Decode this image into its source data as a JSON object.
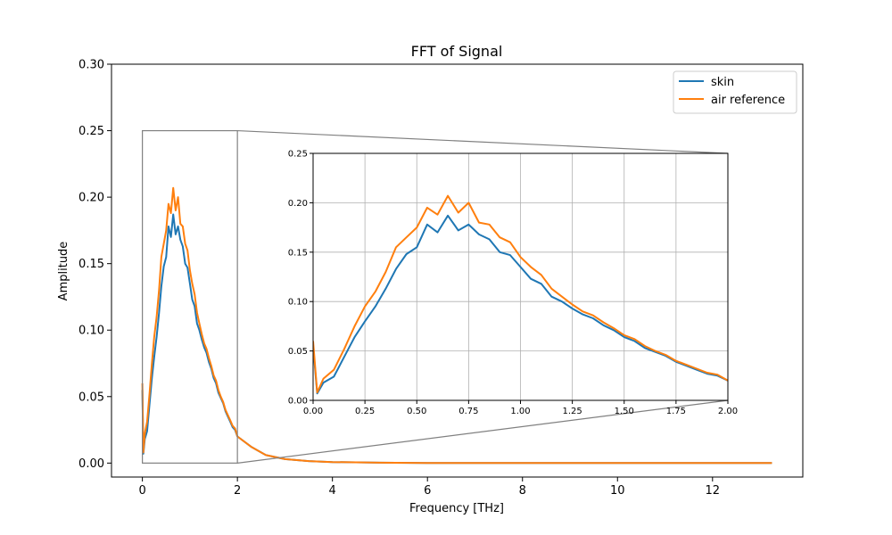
{
  "chart_data": {
    "type": "line",
    "title": "FFT of Signal",
    "xlabel": "Frequency [THz]",
    "ylabel": "Amplitude",
    "xlim": [
      -0.65,
      13.9
    ],
    "ylim": [
      -0.0105,
      0.3
    ],
    "xticks": [
      0,
      2,
      4,
      6,
      8,
      10,
      12
    ],
    "yticks": [
      0.0,
      0.05,
      0.1,
      0.15,
      0.2,
      0.25,
      0.3
    ],
    "xtick_labels": [
      "0",
      "2",
      "4",
      "6",
      "8",
      "10",
      "12"
    ],
    "ytick_labels": [
      "0.00",
      "0.05",
      "0.10",
      "0.15",
      "0.20",
      "0.25",
      "0.30"
    ],
    "grid": false,
    "legend": {
      "position": "top-right",
      "entries": [
        "skin",
        "air reference"
      ]
    },
    "series": [
      {
        "name": "skin",
        "color": "#1f77b4",
        "x": [
          0.0,
          0.02,
          0.05,
          0.1,
          0.15,
          0.2,
          0.25,
          0.3,
          0.35,
          0.4,
          0.45,
          0.5,
          0.55,
          0.6,
          0.65,
          0.7,
          0.75,
          0.8,
          0.85,
          0.9,
          0.95,
          1.0,
          1.05,
          1.1,
          1.15,
          1.2,
          1.25,
          1.3,
          1.35,
          1.4,
          1.45,
          1.5,
          1.55,
          1.6,
          1.65,
          1.7,
          1.75,
          1.8,
          1.85,
          1.9,
          1.95,
          2.0,
          2.3,
          2.6,
          3.0,
          3.5,
          4.0,
          5.0,
          6.0,
          8.0,
          10.0,
          12.0,
          13.25
        ],
        "y": [
          0.055,
          0.007,
          0.018,
          0.024,
          0.044,
          0.064,
          0.08,
          0.095,
          0.113,
          0.133,
          0.148,
          0.155,
          0.178,
          0.17,
          0.187,
          0.172,
          0.178,
          0.168,
          0.163,
          0.15,
          0.147,
          0.135,
          0.123,
          0.118,
          0.105,
          0.1,
          0.093,
          0.087,
          0.083,
          0.076,
          0.071,
          0.064,
          0.06,
          0.053,
          0.049,
          0.045,
          0.039,
          0.035,
          0.031,
          0.027,
          0.025,
          0.02,
          0.012,
          0.006,
          0.003,
          0.0015,
          0.0008,
          0.0003,
          0.0001,
          0.0,
          0.0,
          0.0,
          0.0
        ]
      },
      {
        "name": "air reference",
        "color": "#ff7f0e",
        "x": [
          0.0,
          0.02,
          0.05,
          0.1,
          0.15,
          0.2,
          0.25,
          0.3,
          0.35,
          0.4,
          0.45,
          0.5,
          0.55,
          0.6,
          0.65,
          0.7,
          0.75,
          0.8,
          0.85,
          0.9,
          0.95,
          1.0,
          1.05,
          1.1,
          1.15,
          1.2,
          1.25,
          1.3,
          1.35,
          1.4,
          1.45,
          1.5,
          1.55,
          1.6,
          1.65,
          1.7,
          1.75,
          1.8,
          1.85,
          1.9,
          1.95,
          2.0,
          2.3,
          2.6,
          3.0,
          3.5,
          4.0,
          5.0,
          6.0,
          8.0,
          10.0,
          12.0,
          13.25
        ],
        "y": [
          0.06,
          0.008,
          0.022,
          0.031,
          0.052,
          0.075,
          0.095,
          0.11,
          0.13,
          0.155,
          0.165,
          0.175,
          0.195,
          0.188,
          0.207,
          0.19,
          0.2,
          0.18,
          0.178,
          0.165,
          0.16,
          0.145,
          0.135,
          0.127,
          0.113,
          0.105,
          0.097,
          0.09,
          0.086,
          0.079,
          0.073,
          0.066,
          0.062,
          0.055,
          0.05,
          0.046,
          0.04,
          0.036,
          0.032,
          0.028,
          0.026,
          0.02,
          0.012,
          0.006,
          0.003,
          0.0015,
          0.0008,
          0.0003,
          0.0001,
          0.0,
          0.0,
          0.0,
          0.0
        ]
      }
    ],
    "inset": {
      "xlim": [
        0,
        2
      ],
      "ylim": [
        0,
        0.25
      ],
      "xticks": [
        0,
        0.25,
        0.5,
        0.75,
        1.0,
        1.25,
        1.5,
        1.75,
        2.0
      ],
      "yticks": [
        0.0,
        0.05,
        0.1,
        0.15,
        0.2,
        0.25
      ],
      "xtick_labels": [
        "0.00",
        "0.25",
        "0.50",
        "0.75",
        "1.00",
        "1.25",
        "1.50",
        "1.75",
        "2.00"
      ],
      "ytick_labels": [
        "0.00",
        "0.05",
        "0.10",
        "0.15",
        "0.20",
        "0.25"
      ],
      "grid": true,
      "zoom_region": {
        "x": [
          0,
          2
        ],
        "y": [
          0,
          0.25
        ]
      }
    }
  }
}
